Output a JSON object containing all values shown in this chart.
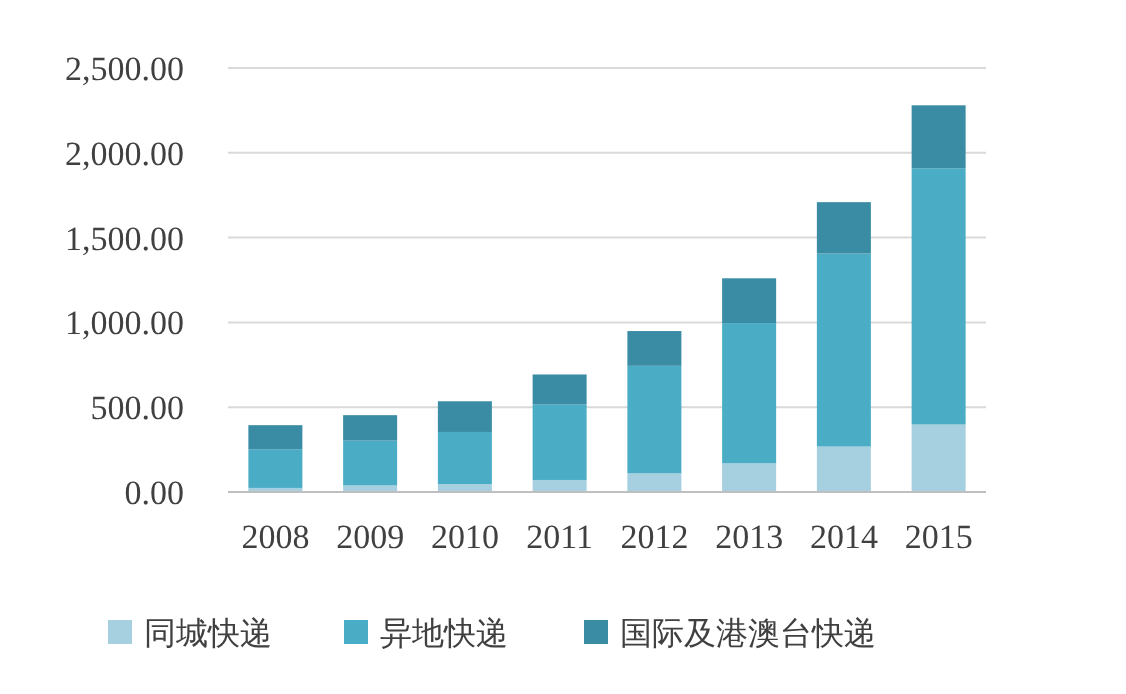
{
  "chart_data": {
    "type": "bar",
    "stacked": true,
    "categories": [
      "2008",
      "2009",
      "2010",
      "2011",
      "2012",
      "2013",
      "2014",
      "2015"
    ],
    "series": [
      {
        "name": "同城快递",
        "color": "#a6cfdf",
        "values": [
          24,
          39,
          47,
          71,
          110,
          169,
          268,
          398
        ]
      },
      {
        "name": "异地快递",
        "color": "#4bacc6",
        "values": [
          228,
          264,
          307,
          445,
          634,
          827,
          1138,
          1511
        ]
      },
      {
        "name": "国际及港澳台快递",
        "color": "#3a8ba4",
        "values": [
          142,
          150,
          181,
          177,
          205,
          264,
          303,
          371
        ]
      }
    ],
    "ylim": [
      0,
      2500
    ],
    "yticks": [
      {
        "value": 0,
        "label": "0.00"
      },
      {
        "value": 500,
        "label": "500.00"
      },
      {
        "value": 1000,
        "label": "1,000.00"
      },
      {
        "value": 1500,
        "label": "1,500.00"
      },
      {
        "value": 2000,
        "label": "2,000.00"
      },
      {
        "value": 2500,
        "label": "2,500.00"
      }
    ],
    "grid": "y",
    "legend": "bottom"
  }
}
